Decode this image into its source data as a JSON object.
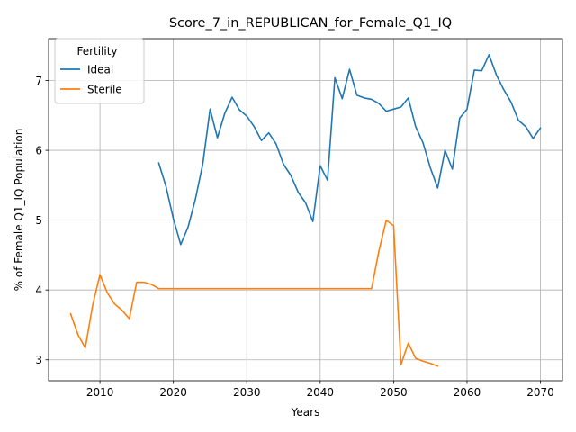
{
  "chart_data": {
    "type": "line",
    "title": "Score_7_in_REPUBLICAN_for_Female_Q1_IQ",
    "xlabel": "Years",
    "ylabel": "% of Female Q1_IQ Population",
    "xlim": [
      2003,
      2073
    ],
    "ylim": [
      2.7,
      7.6
    ],
    "xticks": [
      2010,
      2020,
      2030,
      2040,
      2050,
      2060,
      2070
    ],
    "yticks": [
      3,
      4,
      5,
      6,
      7
    ],
    "grid": true,
    "legend": {
      "title": "Fertility",
      "placement": "top-left"
    },
    "series": [
      {
        "name": "Ideal",
        "color": "#1f77b4",
        "x": [
          2018,
          2019,
          2020,
          2021,
          2022,
          2023,
          2024,
          2025,
          2026,
          2027,
          2028,
          2029,
          2030,
          2031,
          2032,
          2033,
          2034,
          2035,
          2036,
          2037,
          2038,
          2039,
          2040,
          2041,
          2042,
          2043,
          2044,
          2045,
          2046,
          2047,
          2048,
          2049,
          2050,
          2051,
          2052,
          2053,
          2054,
          2055,
          2056,
          2057,
          2058,
          2059,
          2060,
          2061,
          2062,
          2063,
          2064,
          2065,
          2066,
          2067,
          2068,
          2069,
          2070
        ],
        "values": [
          5.82,
          5.48,
          5.02,
          4.65,
          4.9,
          5.3,
          5.8,
          6.59,
          6.18,
          6.53,
          6.76,
          6.58,
          6.49,
          6.34,
          6.14,
          6.25,
          6.09,
          5.8,
          5.64,
          5.4,
          5.25,
          4.98,
          5.78,
          5.57,
          7.04,
          6.74,
          7.16,
          6.79,
          6.75,
          6.73,
          6.67,
          6.56,
          6.59,
          6.62,
          6.75,
          6.34,
          6.11,
          5.75,
          5.46,
          6.0,
          5.73,
          6.46,
          6.59,
          7.15,
          7.14,
          7.37,
          7.08,
          6.87,
          6.69,
          6.43,
          6.34,
          6.17,
          6.32
        ]
      },
      {
        "name": "Sterile",
        "color": "#ff7f0e",
        "x": [
          2006,
          2007,
          2008,
          2009,
          2010,
          2011,
          2012,
          2013,
          2014,
          2015,
          2016,
          2017,
          2018,
          2019,
          2020,
          2021,
          2022,
          2023,
          2024,
          2025,
          2026,
          2027,
          2028,
          2029,
          2030,
          2031,
          2032,
          2033,
          2034,
          2035,
          2036,
          2037,
          2038,
          2039,
          2040,
          2041,
          2042,
          2043,
          2044,
          2045,
          2046,
          2047,
          2048,
          2049,
          2050,
          2051,
          2052,
          2053,
          2054,
          2055,
          2056
        ],
        "values": [
          3.66,
          3.36,
          3.17,
          3.78,
          4.22,
          3.96,
          3.8,
          3.71,
          3.59,
          4.11,
          4.11,
          4.08,
          4.02,
          4.02,
          4.02,
          4.02,
          4.02,
          4.02,
          4.02,
          4.02,
          4.02,
          4.02,
          4.02,
          4.02,
          4.02,
          4.02,
          4.02,
          4.02,
          4.02,
          4.02,
          4.02,
          4.02,
          4.02,
          4.02,
          4.02,
          4.02,
          4.02,
          4.02,
          4.02,
          4.02,
          4.02,
          4.02,
          4.56,
          5.0,
          4.92,
          2.93,
          3.24,
          3.02,
          2.98,
          2.95,
          2.91
        ]
      }
    ]
  }
}
